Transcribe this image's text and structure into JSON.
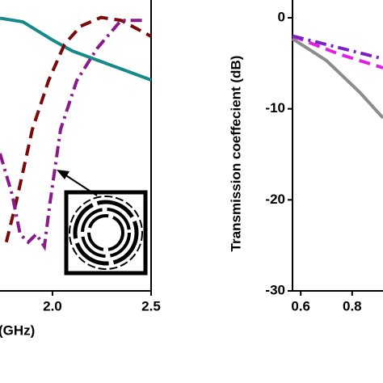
{
  "chart_data": [
    {
      "type": "line",
      "x_label": "(GHz)",
      "xlim": [
        1.734,
        2.5
      ],
      "xticks": [
        {
          "value": 2.0,
          "label": "2.0"
        },
        2.5
      ],
      "ylim": [
        -40,
        0
      ],
      "series": [
        {
          "color": "#17898a",
          "style": "solid",
          "x": [
            1.734,
            1.85,
            2.0,
            2.1,
            2.25,
            2.5
          ],
          "values": [
            -2.5,
            -3,
            -5.5,
            -7,
            -8.5,
            -11
          ]
        },
        {
          "color": "#7a0b0b",
          "style": "dashed",
          "x": [
            1.766,
            1.816,
            1.898,
            1.98,
            2.061,
            2.143,
            2.246,
            2.348,
            2.5
          ],
          "values": [
            -33.3,
            -27.8,
            -17.8,
            -11.1,
            -6.1,
            -3.6,
            -2.4,
            -2.8,
            -5
          ]
        },
        {
          "color": "#8a1a8c",
          "style": "dashdot",
          "x": [
            1.734,
            1.795,
            1.836,
            1.877,
            1.918,
            1.959,
            1.988,
            2.041,
            2.123,
            2.225,
            2.348,
            2.471
          ],
          "values": [
            -21.1,
            -26.7,
            -32.2,
            -33.3,
            -32.2,
            -33.9,
            -27.8,
            -17.8,
            -11.1,
            -6.7,
            -2.8,
            -2.8
          ]
        }
      ]
    },
    {
      "type": "line",
      "y_label": "Transmission coeffecient (dB)",
      "xlim": [
        0.568,
        0.92
      ],
      "xticks": [
        0.6,
        0.8
      ],
      "ylim": [
        -30,
        0
      ],
      "yticks": [
        0,
        -10,
        -20,
        -30
      ],
      "series": [
        {
          "color": "#8c8c8c",
          "style": "solid",
          "x": [
            0.568,
            0.7,
            0.83,
            0.92
          ],
          "values": [
            -2.3,
            -4.7,
            -8.2,
            -11
          ]
        },
        {
          "color": "#e31ee3",
          "style": "dashed",
          "x": [
            0.568,
            0.75,
            0.92
          ],
          "values": [
            -2,
            -4,
            -5.5
          ]
        },
        {
          "color": "#7a22c4",
          "style": "dashdot",
          "x": [
            0.568,
            0.92
          ],
          "values": [
            -2,
            -4.5
          ]
        }
      ]
    }
  ]
}
